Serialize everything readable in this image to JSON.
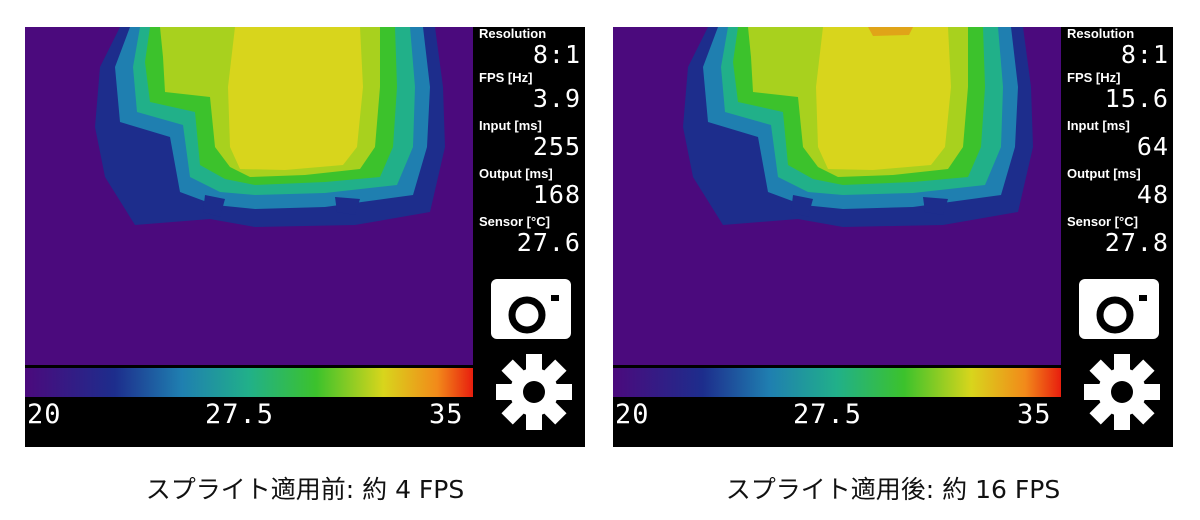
{
  "panels": [
    {
      "caption": "スプライト適用前: 約 4 FPS",
      "stats": [
        {
          "label": "Resolution",
          "value": "8:1"
        },
        {
          "label": "FPS [Hz]",
          "value": "3.9"
        },
        {
          "label": "Input [ms]",
          "value": "255"
        },
        {
          "label": "Output [ms]",
          "value": "168"
        },
        {
          "label": "Sensor [°C]",
          "value": "27.6"
        }
      ],
      "scale": {
        "min": "20",
        "mid": "27.5",
        "max": "35"
      }
    },
    {
      "caption": "スプライト適用後: 約 16 FPS",
      "stats": [
        {
          "label": "Resolution",
          "value": "8:1"
        },
        {
          "label": "FPS [Hz]",
          "value": "15.6"
        },
        {
          "label": "Input [ms]",
          "value": "64"
        },
        {
          "label": "Output [ms]",
          "value": "48"
        },
        {
          "label": "Sensor [°C]",
          "value": "27.8"
        }
      ],
      "scale": {
        "min": "20",
        "mid": "27.5",
        "max": "35"
      }
    }
  ],
  "icons": {
    "camera": "camera-icon",
    "settings": "gear-icon"
  },
  "colors": {
    "background": "#4b0a7d",
    "cold": "#1d2d8c",
    "cool": "#1f7fb0",
    "mid": "#21b089",
    "warm": "#3cc22c",
    "hot": "#a8d11e",
    "peak": "#d8d51c",
    "max": "#e03a10"
  }
}
